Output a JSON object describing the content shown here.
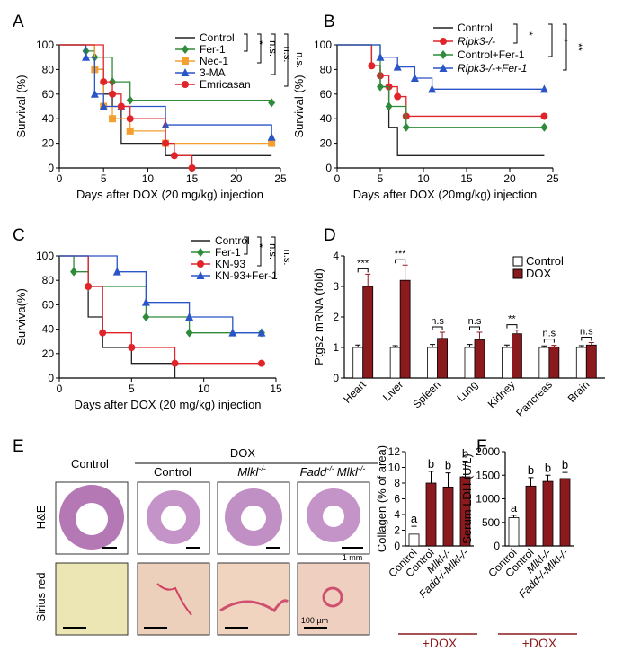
{
  "panels": {
    "A": "A",
    "B": "B",
    "C": "C",
    "D": "D",
    "E": "E",
    "F": "F"
  },
  "colors": {
    "black": "#222222",
    "green": "#2e8b3a",
    "orange": "#f4a030",
    "blue": "#2a55c8",
    "red": "#e0242a",
    "darkred": "#8b1a1e",
    "tissue": "#b478b4"
  },
  "chart_data": [
    {
      "id": "A",
      "type": "line",
      "xlabel": "Days after DOX (20 mg/kg) injection",
      "ylabel": "Survival (%)",
      "xlim": [
        0,
        25
      ],
      "ylim": [
        0,
        100
      ],
      "xticks": [
        0,
        5,
        10,
        15,
        20,
        25
      ],
      "yticks": [
        0,
        20,
        40,
        60,
        80,
        100
      ],
      "series": [
        {
          "name": "Control",
          "color": "#222222",
          "marker": "none",
          "x": [
            0,
            4,
            5,
            6,
            7,
            12,
            24
          ],
          "y": [
            100,
            80,
            60,
            50,
            20,
            10,
            10
          ]
        },
        {
          "name": "Fer-1",
          "color": "#2e8b3a",
          "marker": "diamond",
          "x": [
            0,
            3,
            4,
            6,
            8,
            24
          ],
          "y": [
            100,
            95,
            90,
            70,
            55,
            53
          ]
        },
        {
          "name": "Nec-1",
          "color": "#f4a030",
          "marker": "square",
          "x": [
            0,
            4,
            5,
            6,
            8,
            12,
            24
          ],
          "y": [
            100,
            80,
            50,
            40,
            30,
            20,
            20
          ]
        },
        {
          "name": "3-MA",
          "color": "#2a55c8",
          "marker": "triangle",
          "x": [
            0,
            3,
            4,
            5,
            7,
            12,
            24
          ],
          "y": [
            100,
            90,
            60,
            50,
            50,
            35,
            25
          ]
        },
        {
          "name": "Emricasan",
          "color": "#e0242a",
          "marker": "circle",
          "x": [
            0,
            5,
            6,
            7,
            8,
            12,
            13,
            15
          ],
          "y": [
            100,
            70,
            60,
            50,
            40,
            20,
            10,
            0
          ]
        }
      ],
      "significance": [
        "*",
        "n.s.",
        "n.s.",
        "n.s."
      ]
    },
    {
      "id": "B",
      "type": "line",
      "xlabel": "Days after DOX (20mg/kg) injection",
      "ylabel": "Survival (%)",
      "xlim": [
        0,
        25
      ],
      "ylim": [
        0,
        100
      ],
      "xticks": [
        0,
        5,
        10,
        15,
        20,
        25
      ],
      "yticks": [
        0,
        20,
        40,
        60,
        80,
        100
      ],
      "series": [
        {
          "name": "Control",
          "color": "#222222",
          "marker": "none",
          "x": [
            0,
            4,
            5,
            6,
            7,
            24
          ],
          "y": [
            100,
            83,
            66,
            33,
            10,
            10
          ]
        },
        {
          "name": "Ripk3-/-",
          "color": "#e0242a",
          "marker": "circle",
          "x": [
            0,
            4,
            5,
            6,
            7,
            8,
            24
          ],
          "y": [
            100,
            83,
            75,
            66,
            58,
            42,
            42
          ]
        },
        {
          "name": "Control+Fer-1",
          "color": "#2e8b3a",
          "marker": "diamond",
          "x": [
            0,
            5,
            6,
            8,
            24
          ],
          "y": [
            100,
            66,
            50,
            33,
            33
          ]
        },
        {
          "name": "Ripk3-/-+Fer-1",
          "color": "#2a55c8",
          "marker": "triangle",
          "x": [
            0,
            5,
            7,
            9,
            11,
            24
          ],
          "y": [
            100,
            90,
            82,
            73,
            64,
            64
          ]
        }
      ],
      "significance": [
        "*",
        "*",
        "**"
      ]
    },
    {
      "id": "C",
      "type": "line",
      "xlabel": "Days after DOX (20 mg/kg) injection",
      "ylabel": "Surviva(%)",
      "xlim": [
        0,
        15
      ],
      "ylim": [
        0,
        100
      ],
      "xticks": [
        0,
        5,
        10,
        15
      ],
      "yticks": [
        0,
        20,
        40,
        60,
        80,
        100
      ],
      "series": [
        {
          "name": "Control",
          "color": "#222222",
          "marker": "none",
          "x": [
            0,
            2,
            3,
            5,
            8
          ],
          "y": [
            100,
            50,
            25,
            12,
            0
          ]
        },
        {
          "name": "Fer-1",
          "color": "#2e8b3a",
          "marker": "diamond",
          "x": [
            0,
            1,
            2,
            6,
            9,
            14
          ],
          "y": [
            100,
            87,
            75,
            50,
            37,
            37
          ]
        },
        {
          "name": "KN-93",
          "color": "#e0242a",
          "marker": "circle",
          "x": [
            0,
            2,
            3,
            5,
            8,
            14
          ],
          "y": [
            100,
            75,
            37,
            25,
            12,
            12
          ]
        },
        {
          "name": "KN-93+Fer-1",
          "color": "#2a55c8",
          "marker": "triangle",
          "x": [
            0,
            4,
            6,
            9,
            12,
            14
          ],
          "y": [
            100,
            87,
            62,
            50,
            37,
            37
          ]
        }
      ],
      "significance": [
        "*",
        "n.s.",
        "n.s."
      ]
    },
    {
      "id": "D",
      "type": "bar",
      "ylabel": "Ptgs2 mRNA (fold)",
      "ylim": [
        0,
        4
      ],
      "yticks": [
        0,
        1,
        2,
        3,
        4
      ],
      "categories": [
        "Heart",
        "Liver",
        "Spleen",
        "Lung",
        "Kidney",
        "Pancreas",
        "Brain"
      ],
      "series": [
        {
          "name": "Control",
          "color": "#ffffff",
          "values": [
            1.0,
            1.0,
            1.0,
            1.0,
            1.0,
            1.0,
            1.0
          ],
          "err": [
            0.08,
            0.06,
            0.1,
            0.1,
            0.08,
            0.05,
            0.06
          ]
        },
        {
          "name": "DOX",
          "color": "#8b1a1e",
          "values": [
            3.0,
            3.2,
            1.3,
            1.25,
            1.45,
            1.02,
            1.08
          ],
          "err": [
            0.4,
            0.5,
            0.2,
            0.25,
            0.12,
            0.05,
            0.08
          ]
        }
      ],
      "significance": [
        "***",
        "***",
        "n.s",
        "n.s",
        "**",
        "n.s",
        "n.s"
      ]
    },
    {
      "id": "E",
      "type": "bar",
      "ylabel": "Collagen (% of area)",
      "ylim": [
        0,
        12
      ],
      "yticks": [
        0,
        2,
        4,
        6,
        8,
        10,
        12
      ],
      "categories": [
        "Control",
        "Control",
        "Mlkl-/-",
        "Fadd-/-Mlkl-/-"
      ],
      "colors": [
        "#ffffff",
        "#8b1a1e",
        "#8b1a1e",
        "#8b1a1e"
      ],
      "values": [
        1.5,
        8.0,
        7.5,
        8.8
      ],
      "err": [
        1.0,
        1.5,
        1.8,
        2.0
      ],
      "letters": [
        "a",
        "b",
        "b",
        "b"
      ],
      "group_label": "+DOX"
    },
    {
      "id": "F",
      "type": "bar",
      "ylabel": "Serum LDH (U/L)",
      "ylim": [
        0,
        2000
      ],
      "yticks": [
        0,
        500,
        1000,
        1500,
        2000
      ],
      "categories": [
        "Control",
        "Control",
        "Mlkl-/-",
        "Fadd-/-Mlkl-/-"
      ],
      "colors": [
        "#ffffff",
        "#8b1a1e",
        "#8b1a1e",
        "#8b1a1e"
      ],
      "values": [
        600,
        1270,
        1370,
        1430
      ],
      "err": [
        50,
        180,
        130,
        130
      ],
      "letters": [
        "a",
        "b",
        "b",
        "b"
      ],
      "group_label": "+DOX"
    }
  ],
  "histology": {
    "dox_header": "DOX",
    "col_labels": [
      "Control",
      "Control",
      "Mlkl",
      "Fadd",
      "Mlkl"
    ],
    "row_labels": [
      "H&E",
      "Sirius red"
    ],
    "scale_1mm": "1 mm",
    "scale_100um": "100 µm",
    "sup": "-/-"
  }
}
